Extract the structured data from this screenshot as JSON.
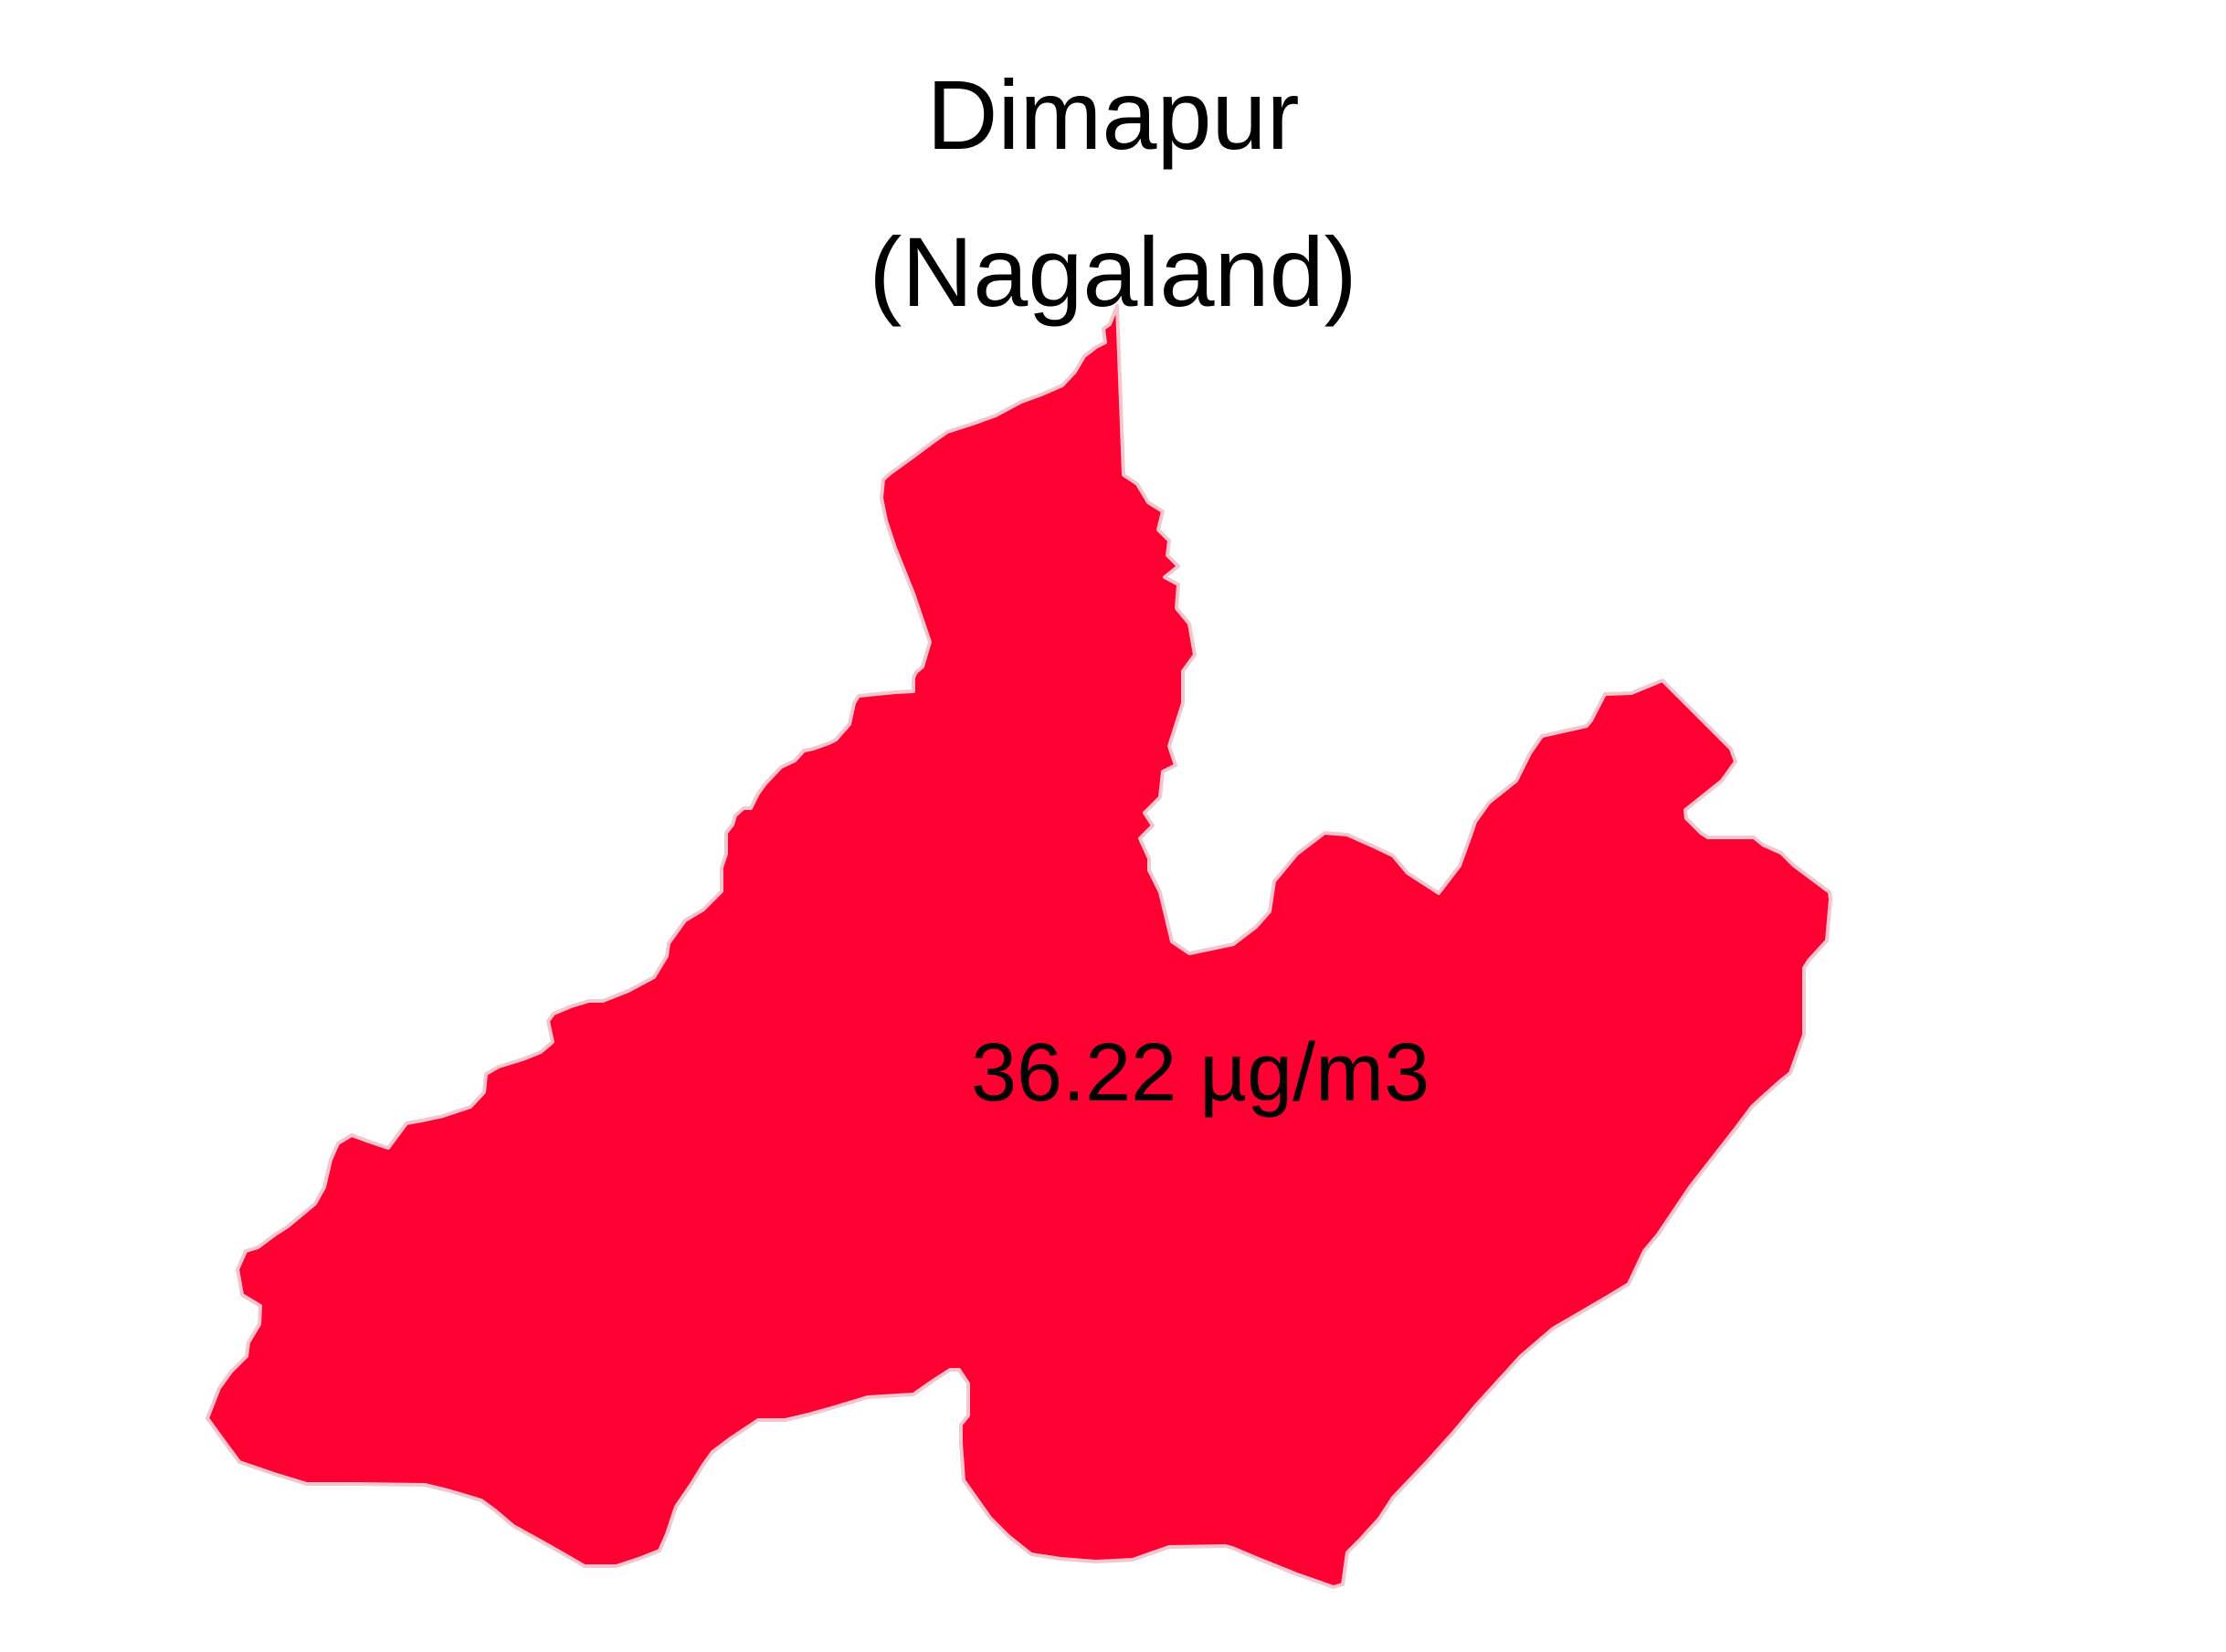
{
  "map": {
    "title_line_1": "Dimapur",
    "title_line_2": "(Nagaland)",
    "district": "Dimapur",
    "state": "Nagaland",
    "value_label": "36.22 µg/m3",
    "value": 36.22,
    "unit": "µg/m3",
    "fill_color": "#ff0033",
    "border_color": "#f4c7cf",
    "background_color": "#ffffff"
  }
}
